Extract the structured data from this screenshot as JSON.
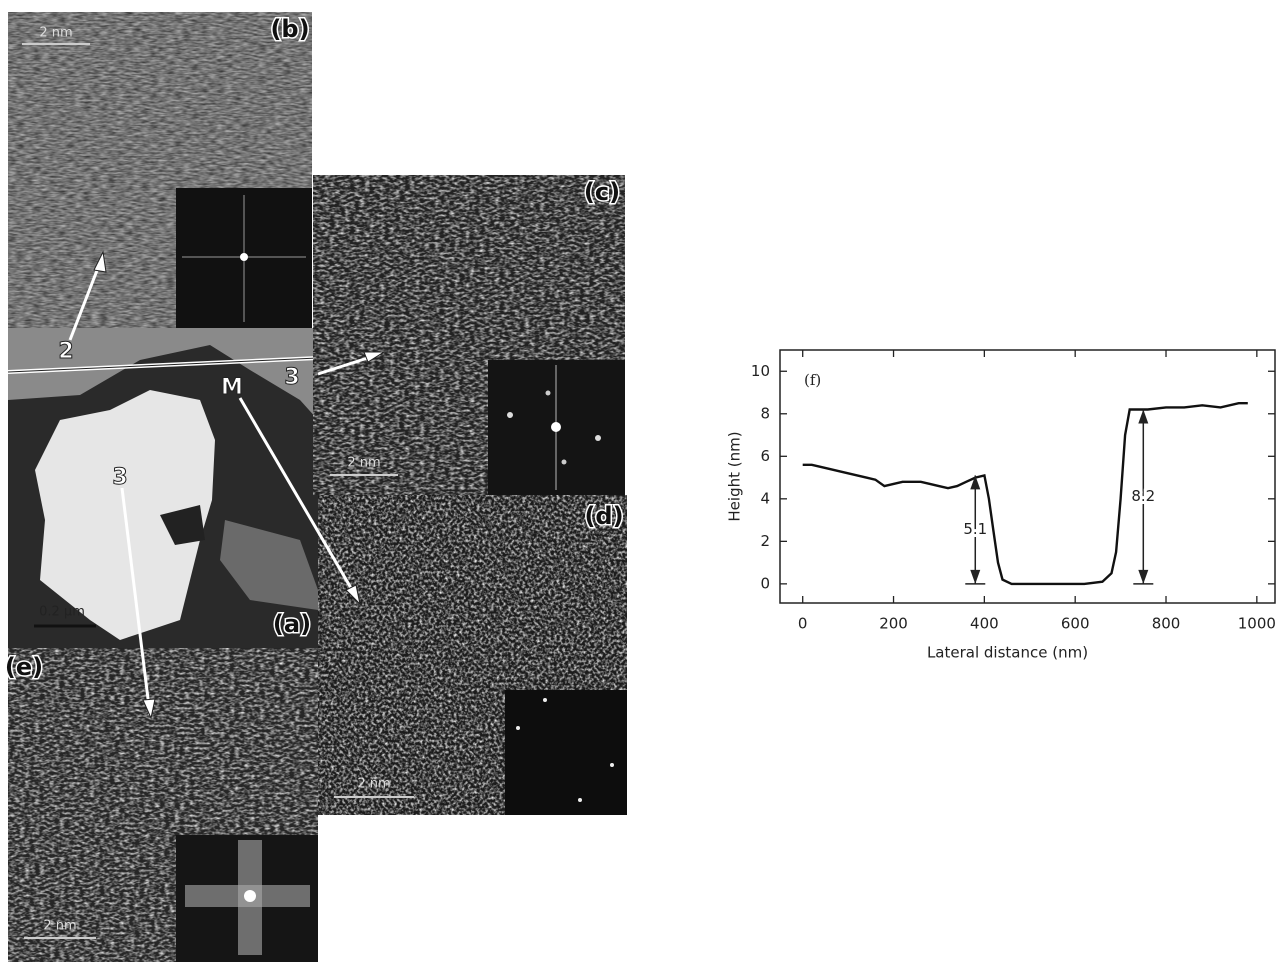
{
  "panels": [
    {
      "label": "(b)",
      "scale_bar": "2 nm"
    },
    {
      "label": "(a)",
      "scale_bar": "0.2 μm"
    },
    {
      "label": "(c)",
      "scale_bar": "2 nm"
    },
    {
      "label": "(d)",
      "scale_bar": "2 nm"
    },
    {
      "label": "(e)",
      "scale_bar": "2 nm"
    }
  ],
  "arrow_labels": [
    "2",
    "3",
    "M",
    "3"
  ],
  "chart_data": {
    "type": "line",
    "panel_label": "(f)",
    "x_label": "Lateral distance (nm)",
    "y_label": "Height (nm)",
    "x": [
      0,
      20,
      40,
      60,
      80,
      100,
      120,
      140,
      160,
      180,
      200,
      220,
      240,
      260,
      280,
      300,
      320,
      340,
      360,
      380,
      400,
      410,
      420,
      430,
      440,
      460,
      500,
      540,
      580,
      620,
      660,
      680,
      690,
      700,
      710,
      720,
      740,
      760,
      800,
      840,
      880,
      920,
      960,
      980
    ],
    "values": [
      5.6,
      5.6,
      5.5,
      5.4,
      5.3,
      5.2,
      5.1,
      5.0,
      4.9,
      4.6,
      4.7,
      4.8,
      4.8,
      4.8,
      4.7,
      4.6,
      4.5,
      4.6,
      4.8,
      5.0,
      5.1,
      4.0,
      2.5,
      1.0,
      0.2,
      0,
      0,
      0,
      0,
      0,
      0.1,
      0.5,
      1.5,
      4.0,
      7.0,
      8.2,
      8.2,
      8.2,
      8.3,
      8.3,
      8.4,
      8.3,
      8.5,
      8.5
    ],
    "color": "#111111",
    "annotations": [
      {
        "x": 380,
        "value": 5.1
      },
      {
        "x": 750,
        "value": 8.2
      }
    ],
    "xlim": [
      -50,
      1040
    ],
    "ylim": [
      -0.9,
      11
    ],
    "xticks": [
      0,
      200,
      400,
      600,
      800,
      1000
    ],
    "yticks": [
      0,
      2,
      4,
      6,
      8,
      10
    ]
  }
}
